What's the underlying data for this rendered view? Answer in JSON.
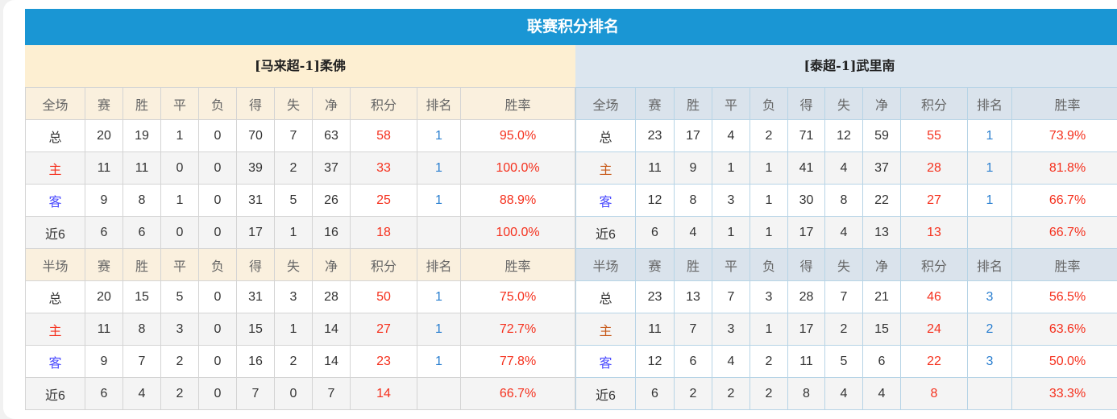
{
  "title": "联赛积分排名",
  "headers_full": [
    "全场",
    "赛",
    "胜",
    "平",
    "负",
    "得",
    "失",
    "净",
    "积分",
    "排名",
    "胜率"
  ],
  "headers_half": [
    "半场",
    "赛",
    "胜",
    "平",
    "负",
    "得",
    "失",
    "净",
    "积分",
    "排名",
    "胜率"
  ],
  "colors": {
    "title_bar": "#1a96d4",
    "points": "#f5301d",
    "rank": "#2a7fd0",
    "away_label": "#4b4bff"
  },
  "teams": [
    {
      "name": "[马来超-1]柔佛",
      "full": [
        [
          "总",
          "20",
          "19",
          "1",
          "0",
          "70",
          "7",
          "63",
          "58",
          "1",
          "95.0%"
        ],
        [
          "主",
          "11",
          "11",
          "0",
          "0",
          "39",
          "2",
          "37",
          "33",
          "1",
          "100.0%"
        ],
        [
          "客",
          "9",
          "8",
          "1",
          "0",
          "31",
          "5",
          "26",
          "25",
          "1",
          "88.9%"
        ],
        [
          "近6",
          "6",
          "6",
          "0",
          "0",
          "17",
          "1",
          "16",
          "18",
          "",
          "100.0%"
        ]
      ],
      "half": [
        [
          "总",
          "20",
          "15",
          "5",
          "0",
          "31",
          "3",
          "28",
          "50",
          "1",
          "75.0%"
        ],
        [
          "主",
          "11",
          "8",
          "3",
          "0",
          "15",
          "1",
          "14",
          "27",
          "1",
          "72.7%"
        ],
        [
          "客",
          "9",
          "7",
          "2",
          "0",
          "16",
          "2",
          "14",
          "23",
          "1",
          "77.8%"
        ],
        [
          "近6",
          "6",
          "4",
          "2",
          "0",
          "7",
          "0",
          "7",
          "14",
          "",
          "66.7%"
        ]
      ]
    },
    {
      "name": "[泰超-1]武里南",
      "full": [
        [
          "总",
          "23",
          "17",
          "4",
          "2",
          "71",
          "12",
          "59",
          "55",
          "1",
          "73.9%"
        ],
        [
          "主",
          "11",
          "9",
          "1",
          "1",
          "41",
          "4",
          "37",
          "28",
          "1",
          "81.8%"
        ],
        [
          "客",
          "12",
          "8",
          "3",
          "1",
          "30",
          "8",
          "22",
          "27",
          "1",
          "66.7%"
        ],
        [
          "近6",
          "6",
          "4",
          "1",
          "1",
          "17",
          "4",
          "13",
          "13",
          "",
          "66.7%"
        ]
      ],
      "half": [
        [
          "总",
          "23",
          "13",
          "7",
          "3",
          "28",
          "7",
          "21",
          "46",
          "3",
          "56.5%"
        ],
        [
          "主",
          "11",
          "7",
          "3",
          "1",
          "17",
          "2",
          "15",
          "24",
          "2",
          "63.6%"
        ],
        [
          "客",
          "12",
          "6",
          "4",
          "2",
          "11",
          "5",
          "6",
          "22",
          "3",
          "50.0%"
        ],
        [
          "近6",
          "6",
          "2",
          "2",
          "2",
          "8",
          "4",
          "4",
          "8",
          "",
          "33.3%"
        ]
      ]
    }
  ]
}
